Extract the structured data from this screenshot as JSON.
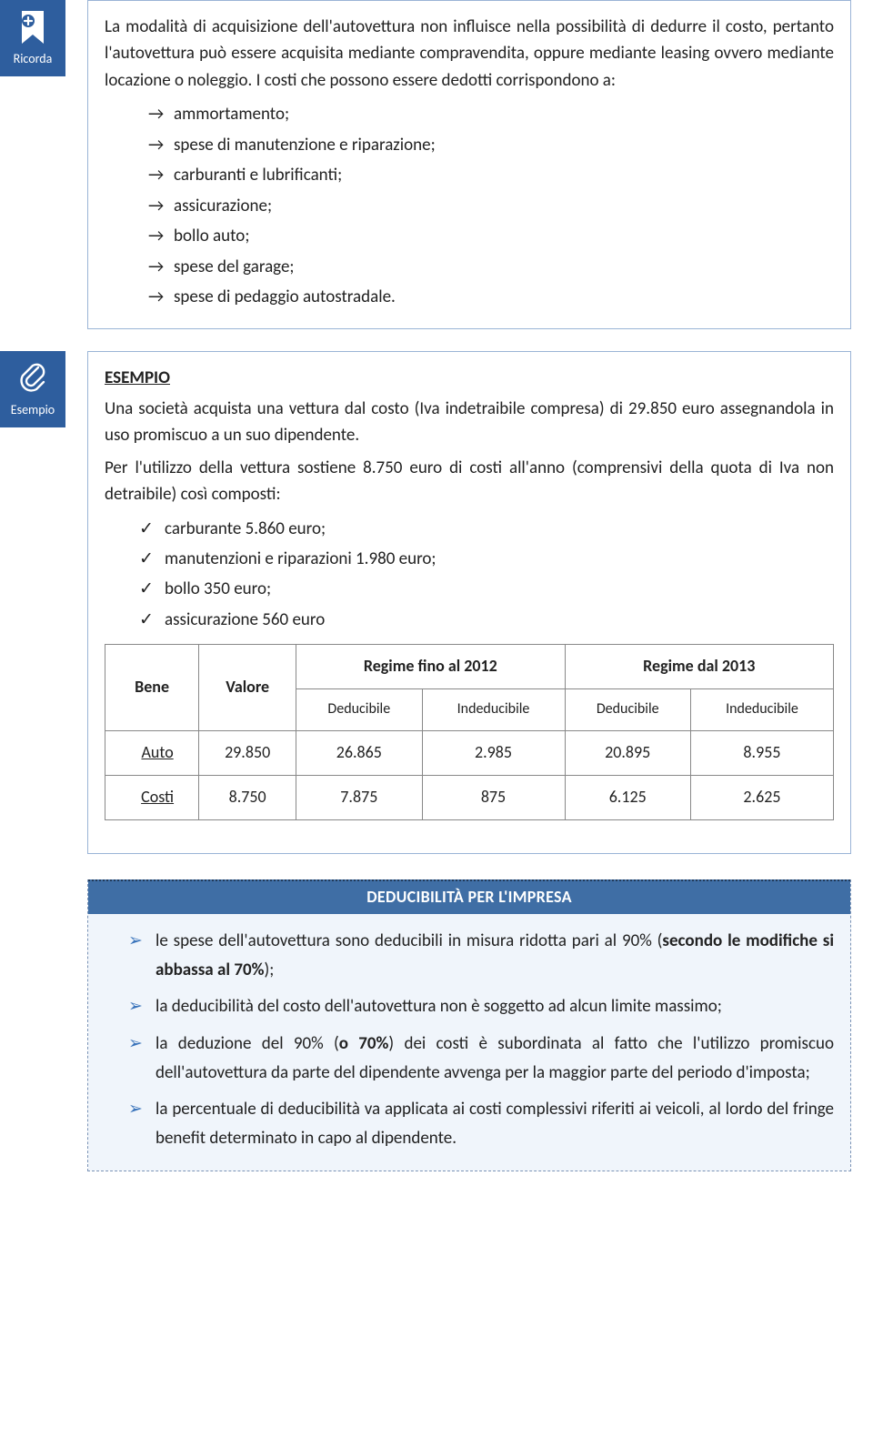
{
  "badges": {
    "ricorda": "Ricorda",
    "esempio": "Esempio"
  },
  "ricorda_box": {
    "intro": "La modalità di acquisizione dell'autovettura non influisce nella possibilità di dedurre il costo, pertanto l'autovettura può essere acquisita mediante compravendita, oppure mediante leasing ovvero mediante locazione o noleggio. I costi che possono essere dedotti corrispondono a:",
    "items": [
      "ammortamento;",
      "spese di manutenzione e riparazione;",
      "carburanti e lubrificanti;",
      "assicurazione;",
      "bollo auto;",
      "spese del garage;",
      "spese di pedaggio autostradale."
    ]
  },
  "esempio_box": {
    "title": "ESEMPIO",
    "p1": "Una società acquista una vettura dal costo (Iva indetraibile compresa) di 29.850 euro assegnandola in uso promiscuo a un suo dipendente.",
    "p2": "Per l'utilizzo della vettura sostiene 8.750 euro di costi all'anno (comprensivi della quota di Iva non detraibile) così composti:",
    "costs": [
      "carburante 5.860 euro;",
      "manutenzioni e riparazioni 1.980 euro;",
      "bollo 350 euro;",
      "assicurazione 560 euro"
    ],
    "table": {
      "col_bene": "Bene",
      "col_valore": "Valore",
      "group1": "Regime fino al 2012",
      "group2": "Regime dal 2013",
      "sub_ded": "Deducibile",
      "sub_ind": "Indeducibile",
      "rows": [
        {
          "bene": "Auto",
          "valore": "29.850",
          "d1": "26.865",
          "i1": "2.985",
          "d2": "20.895",
          "i2": "8.955"
        },
        {
          "bene": "Costi",
          "valore": "8.750",
          "d1": "7.875",
          "i1": "875",
          "d2": "6.125",
          "i2": "2.625"
        }
      ]
    }
  },
  "banner": {
    "title": "DEDUCIBILITÀ PER L'IMPRESA",
    "items": [
      "le spese dell'autovettura sono deducibili in misura ridotta pari al 90% (<b>secondo le modifiche si abbassa al 70%</b>);",
      "la deducibilità del costo dell'autovettura non è soggetto ad alcun limite massimo;",
      "la deduzione del 90% (<b>o 70%</b>) dei costi è subordinata al fatto che l'utilizzo promiscuo dell'autovettura da parte del dipendente avvenga per la maggior parte del periodo d'imposta;",
      "la percentuale di deducibilità va applicata ai costi complessivi riferiti ai veicoli, al lordo del fringe benefit determinato in capo al dipendente."
    ]
  }
}
